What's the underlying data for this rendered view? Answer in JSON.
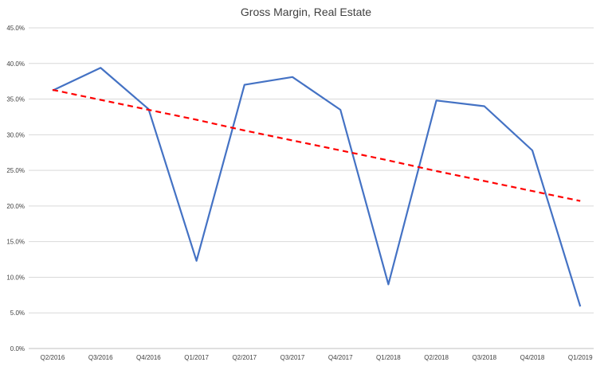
{
  "chart_data": {
    "type": "line",
    "title": "Gross Margin, Real Estate",
    "xlabel": "",
    "ylabel": "",
    "categories": [
      "Q2/2016",
      "Q3/2016",
      "Q4/2016",
      "Q1/2017",
      "Q2/2017",
      "Q3/2017",
      "Q4/2017",
      "Q1/2018",
      "Q2/2018",
      "Q3/2018",
      "Q4/2018",
      "Q1/2019"
    ],
    "series": [
      {
        "kind": "actual",
        "color": "#4472c4",
        "values": [
          36.2,
          39.4,
          33.6,
          12.3,
          37.0,
          38.1,
          33.5,
          9.0,
          34.8,
          34.0,
          27.8,
          5.9
        ]
      },
      {
        "kind": "linear-trendline",
        "color": "#ff0000",
        "style": "dashed",
        "values": [
          36.3,
          34.9,
          33.5,
          32.1,
          30.6,
          29.2,
          27.8,
          26.4,
          24.9,
          23.5,
          22.1,
          20.7
        ]
      }
    ],
    "ylim": [
      0,
      45
    ],
    "yticks": [
      0,
      5,
      10,
      15,
      20,
      25,
      30,
      35,
      40,
      45
    ],
    "ytick_labels": [
      "0.0%",
      "5.0%",
      "10.0%",
      "15.0%",
      "20.0%",
      "25.0%",
      "30.0%",
      "35.0%",
      "40.0%",
      "45.0%"
    ],
    "grid": true,
    "legend": "none"
  }
}
